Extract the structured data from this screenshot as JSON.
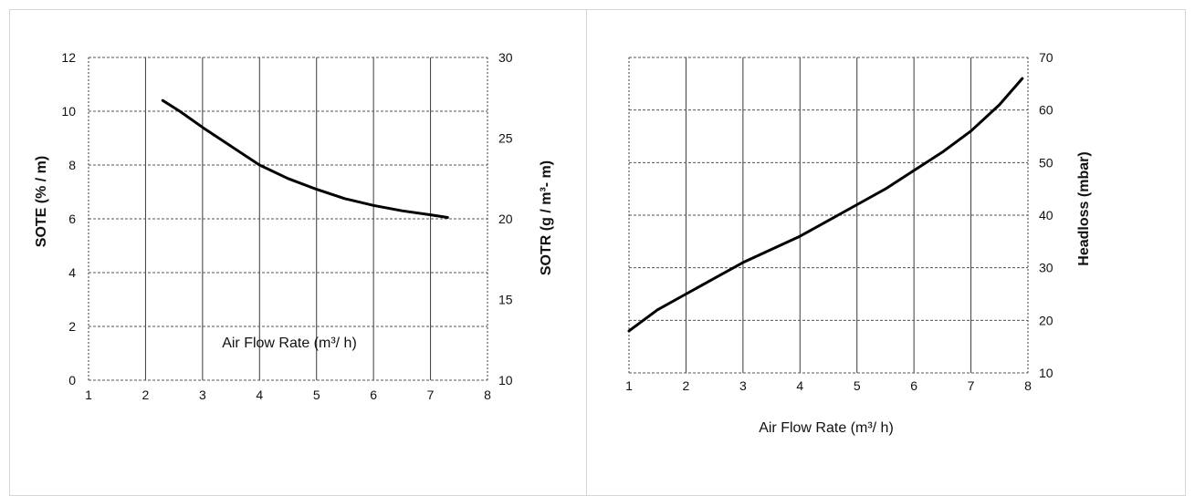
{
  "chart_data": [
    {
      "type": "line",
      "xlabel": "Air Flow Rate (m³/ h)",
      "ylabel": "SOTE (% / m)",
      "y2label": "SOTR (g / m³- m)",
      "xlim": [
        1,
        8
      ],
      "ylim": [
        0,
        12
      ],
      "y2lim": [
        10,
        30
      ],
      "x_ticks": [
        "1",
        "2",
        "3",
        "4",
        "5",
        "6",
        "7",
        "8"
      ],
      "y_ticks": [
        "0",
        "2",
        "4",
        "6",
        "8",
        "10",
        "12"
      ],
      "y2_ticks": [
        "10",
        "15",
        "20",
        "25",
        "30"
      ],
      "grid": true,
      "series": [
        {
          "x": [
            2.3,
            2.6,
            3.0,
            3.5,
            4.0,
            4.5,
            5.0,
            5.5,
            6.0,
            6.5,
            7.0,
            7.3
          ],
          "y": [
            10.4,
            10.0,
            9.4,
            8.7,
            8.0,
            7.5,
            7.1,
            6.75,
            6.5,
            6.3,
            6.15,
            6.05
          ]
        }
      ]
    },
    {
      "type": "line",
      "xlabel": "Air Flow Rate (m³/ h)",
      "ylabel": "",
      "y2label": "Headloss (mbar)",
      "xlim": [
        1,
        8
      ],
      "y2lim": [
        10,
        70
      ],
      "x_ticks": [
        "1",
        "2",
        "3",
        "4",
        "5",
        "6",
        "7",
        "8"
      ],
      "y2_ticks": [
        "10",
        "20",
        "30",
        "40",
        "50",
        "60",
        "70"
      ],
      "grid": true,
      "series": [
        {
          "x": [
            1.0,
            1.5,
            2.0,
            2.5,
            3.0,
            3.5,
            4.0,
            4.5,
            5.0,
            5.5,
            6.0,
            6.5,
            7.0,
            7.5,
            7.9
          ],
          "y": [
            18,
            22,
            25,
            28,
            31,
            33.5,
            36,
            39,
            42,
            45,
            48.5,
            52,
            56,
            61,
            66
          ]
        }
      ]
    }
  ]
}
